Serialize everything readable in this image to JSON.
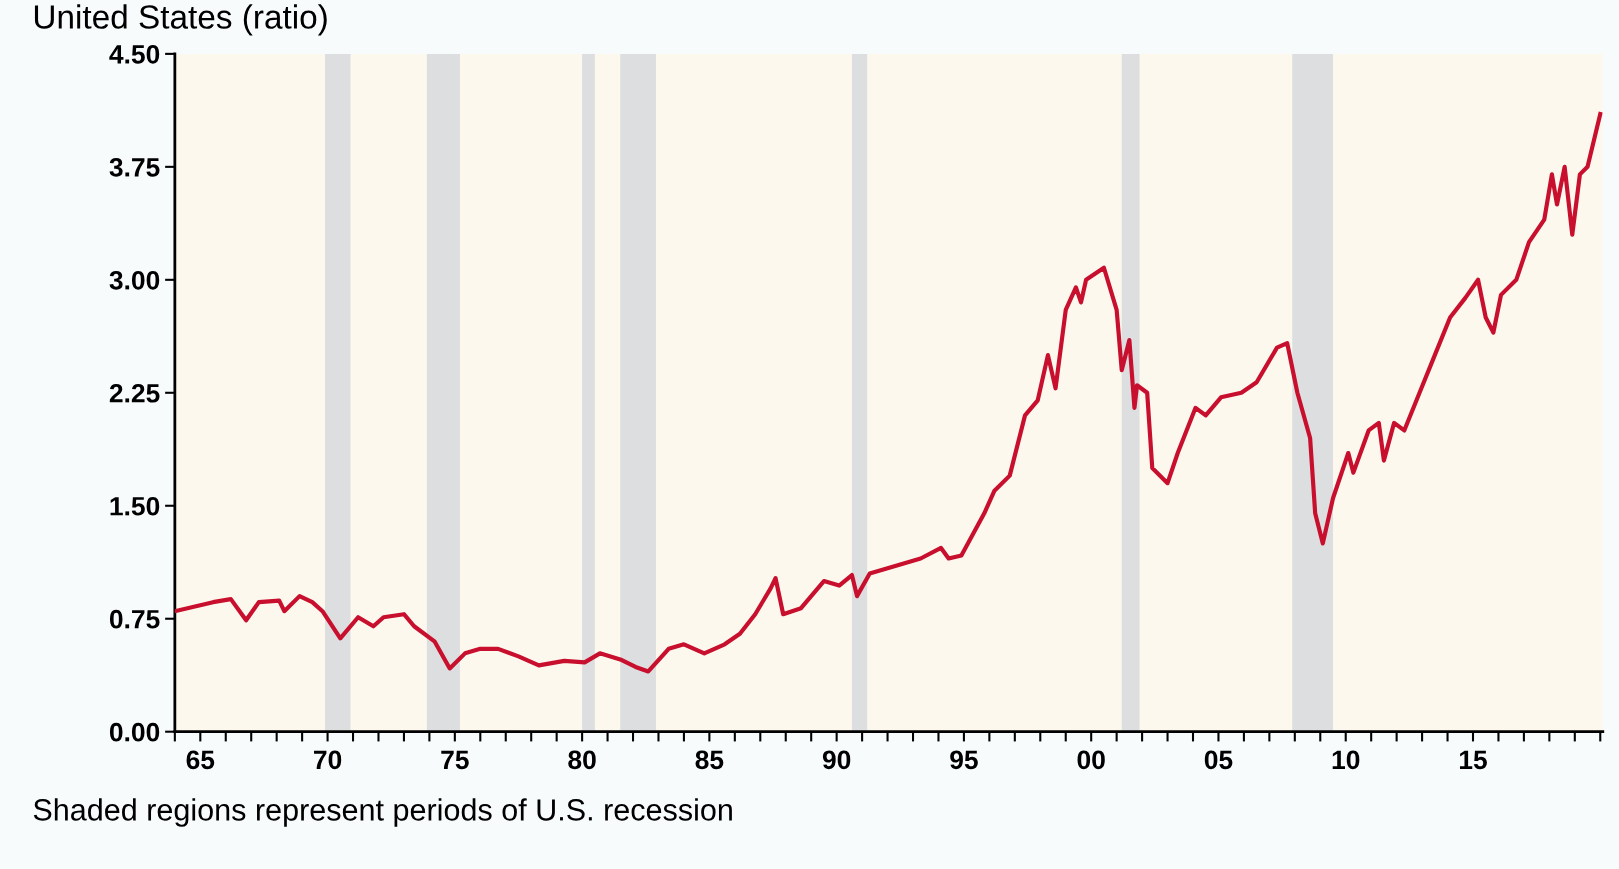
{
  "chart_data": {
    "type": "line",
    "title": "United States (ratio)",
    "annotations": [
      "Shaded regions represent periods of U.S. recession"
    ],
    "x": [
      1964.0,
      1965.5,
      1966.2,
      1966.8,
      1967.3,
      1968.1,
      1968.3,
      1968.9,
      1969.4,
      1969.8,
      1970.5,
      1971.2,
      1971.8,
      1972.2,
      1973.0,
      1973.4,
      1974.2,
      1974.8,
      1975.4,
      1976.0,
      1976.7,
      1977.5,
      1978.3,
      1979.3,
      1980.1,
      1980.7,
      1981.5,
      1982.1,
      1982.6,
      1983.4,
      1984.0,
      1984.8,
      1985.6,
      1986.2,
      1986.8,
      1987.4,
      1987.6,
      1987.9,
      1988.6,
      1989.5,
      1990.1,
      1990.6,
      1990.8,
      1991.3,
      1992.3,
      1993.3,
      1994.1,
      1994.4,
      1994.9,
      1995.8,
      1996.2,
      1996.8,
      1997.4,
      1997.9,
      1998.3,
      1998.6,
      1999.0,
      1999.4,
      1999.6,
      1999.8,
      2000.5,
      2001.0,
      2001.2,
      2001.5,
      2001.7,
      2001.8,
      2002.2,
      2002.4,
      2003.0,
      2003.4,
      2004.1,
      2004.5,
      2005.1,
      2005.9,
      2006.5,
      2007.3,
      2007.7,
      2008.1,
      2008.6,
      2008.8,
      2009.1,
      2009.5,
      2009.9,
      2010.1,
      2010.3,
      2010.9,
      2011.3,
      2011.5,
      2011.9,
      2012.3,
      2012.9,
      2013.5,
      2014.1,
      2014.7,
      2015.2,
      2015.5,
      2015.8,
      2016.1,
      2016.7,
      2017.2,
      2017.8,
      2018.1,
      2018.3,
      2018.6,
      2018.9,
      2019.2,
      2019.5,
      2020.0
    ],
    "series": [
      {
        "color": "#c8102e",
        "values": [
          0.8,
          0.86,
          0.88,
          0.74,
          0.86,
          0.87,
          0.8,
          0.9,
          0.86,
          0.8,
          0.62,
          0.76,
          0.7,
          0.76,
          0.78,
          0.7,
          0.6,
          0.42,
          0.52,
          0.55,
          0.55,
          0.5,
          0.44,
          0.47,
          0.46,
          0.52,
          0.48,
          0.43,
          0.4,
          0.55,
          0.58,
          0.52,
          0.58,
          0.65,
          0.78,
          0.95,
          1.02,
          0.78,
          0.82,
          1.0,
          0.97,
          1.04,
          0.9,
          1.05,
          1.1,
          1.15,
          1.22,
          1.15,
          1.17,
          1.45,
          1.6,
          1.7,
          2.1,
          2.2,
          2.5,
          2.28,
          2.8,
          2.95,
          2.85,
          3.0,
          3.08,
          2.8,
          2.4,
          2.6,
          2.15,
          2.3,
          2.25,
          1.75,
          1.65,
          1.85,
          2.15,
          2.1,
          2.22,
          2.25,
          2.32,
          2.55,
          2.58,
          2.25,
          1.95,
          1.45,
          1.25,
          1.55,
          1.75,
          1.85,
          1.72,
          2.0,
          2.05,
          1.8,
          2.05,
          2.0,
          2.25,
          2.5,
          2.75,
          2.88,
          3.0,
          2.75,
          2.65,
          2.9,
          3.0,
          3.25,
          3.4,
          3.7,
          3.5,
          3.75,
          3.3,
          3.7,
          3.75,
          4.1
        ]
      }
    ],
    "xlim": [
      1964.0,
      2020.1
    ],
    "xticks": [
      {
        "value": 1965,
        "label": "65"
      },
      {
        "value": 1970,
        "label": "70"
      },
      {
        "value": 1975,
        "label": "75"
      },
      {
        "value": 1980,
        "label": "80"
      },
      {
        "value": 1985,
        "label": "85"
      },
      {
        "value": 1990,
        "label": "90"
      },
      {
        "value": 1995,
        "label": "95"
      },
      {
        "value": 2000,
        "label": "00"
      },
      {
        "value": 2005,
        "label": "05"
      },
      {
        "value": 2010,
        "label": "10"
      },
      {
        "value": 2015,
        "label": "15"
      },
      {
        "value": 1964,
        "label": null
      },
      {
        "value": 1966,
        "label": null
      },
      {
        "value": 1967,
        "label": null
      },
      {
        "value": 1968,
        "label": null
      },
      {
        "value": 1969,
        "label": null
      },
      {
        "value": 1971,
        "label": null
      },
      {
        "value": 1972,
        "label": null
      },
      {
        "value": 1973,
        "label": null
      },
      {
        "value": 1974,
        "label": null
      },
      {
        "value": 1976,
        "label": null
      },
      {
        "value": 1977,
        "label": null
      },
      {
        "value": 1978,
        "label": null
      },
      {
        "value": 1979,
        "label": null
      },
      {
        "value": 1981,
        "label": null
      },
      {
        "value": 1982,
        "label": null
      },
      {
        "value": 1983,
        "label": null
      },
      {
        "value": 1984,
        "label": null
      },
      {
        "value": 1986,
        "label": null
      },
      {
        "value": 1987,
        "label": null
      },
      {
        "value": 1988,
        "label": null
      },
      {
        "value": 1989,
        "label": null
      },
      {
        "value": 1991,
        "label": null
      },
      {
        "value": 1992,
        "label": null
      },
      {
        "value": 1993,
        "label": null
      },
      {
        "value": 1994,
        "label": null
      },
      {
        "value": 1996,
        "label": null
      },
      {
        "value": 1997,
        "label": null
      },
      {
        "value": 1998,
        "label": null
      },
      {
        "value": 1999,
        "label": null
      },
      {
        "value": 2001,
        "label": null
      },
      {
        "value": 2002,
        "label": null
      },
      {
        "value": 2003,
        "label": null
      },
      {
        "value": 2004,
        "label": null
      },
      {
        "value": 2006,
        "label": null
      },
      {
        "value": 2007,
        "label": null
      },
      {
        "value": 2008,
        "label": null
      },
      {
        "value": 2009,
        "label": null
      },
      {
        "value": 2011,
        "label": null
      },
      {
        "value": 2012,
        "label": null
      },
      {
        "value": 2013,
        "label": null
      },
      {
        "value": 2014,
        "label": null
      },
      {
        "value": 2016,
        "label": null
      },
      {
        "value": 2017,
        "label": null
      },
      {
        "value": 2018,
        "label": null
      },
      {
        "value": 2019,
        "label": null
      },
      {
        "value": 2020,
        "label": null
      }
    ],
    "ylim": [
      0,
      4.5
    ],
    "yticks": [
      {
        "value": 0,
        "label": "0.00"
      },
      {
        "value": 0.75,
        "label": "0.75"
      },
      {
        "value": 1.5,
        "label": "1.50"
      },
      {
        "value": 2.25,
        "label": "2.25"
      },
      {
        "value": 3.0,
        "label": "3.00"
      },
      {
        "value": 3.75,
        "label": "3.75"
      },
      {
        "value": 4.5,
        "label": "4.50"
      }
    ],
    "bands": [
      {
        "axis": "x",
        "from": 1969.9,
        "to": 1970.9,
        "color": "#dcdedf"
      },
      {
        "axis": "x",
        "from": 1973.9,
        "to": 1975.2,
        "color": "#dcdedf"
      },
      {
        "axis": "x",
        "from": 1980.0,
        "to": 1980.5,
        "color": "#dcdedf"
      },
      {
        "axis": "x",
        "from": 1981.5,
        "to": 1982.9,
        "color": "#dcdedf"
      },
      {
        "axis": "x",
        "from": 1990.6,
        "to": 1991.2,
        "color": "#dcdedf"
      },
      {
        "axis": "x",
        "from": 2001.2,
        "to": 2001.9,
        "color": "#dcdedf"
      },
      {
        "axis": "x",
        "from": 2007.9,
        "to": 2009.5,
        "color": "#dcdedf"
      }
    ],
    "grid": false,
    "legend": false
  }
}
